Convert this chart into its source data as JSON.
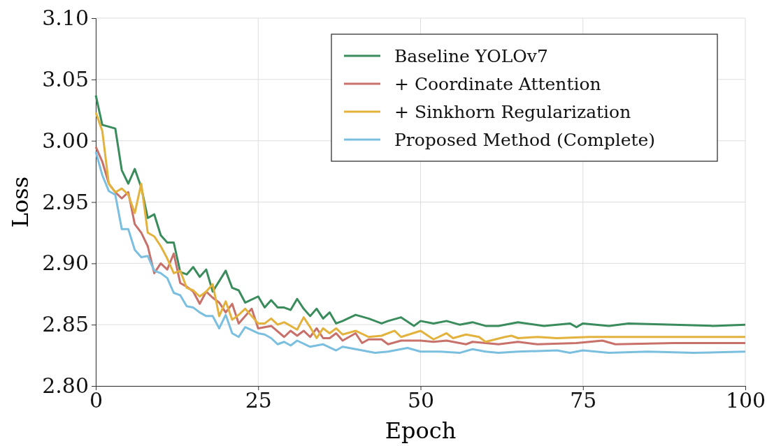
{
  "chart_data": {
    "type": "line",
    "xlabel": "Epoch",
    "ylabel": "Loss",
    "xlim": [
      0,
      100
    ],
    "xticks": [
      0,
      25,
      50,
      75,
      100
    ],
    "ylim": [
      2.8,
      3.1
    ],
    "yticks": [
      {
        "value": 2.8,
        "label": "2.80"
      },
      {
        "value": 2.85,
        "label": "2.85"
      },
      {
        "value": 2.9,
        "label": "2.90"
      },
      {
        "value": 2.95,
        "label": "2.95"
      },
      {
        "value": 3.0,
        "label": "3.00"
      },
      {
        "value": 3.05,
        "label": "3.05"
      },
      {
        "value": 3.1,
        "label": "3.10"
      }
    ],
    "grid": true,
    "legend": "top right",
    "line_style": "solid",
    "series": [
      {
        "name": "Baseline YOLOv7",
        "color": "#3a8c5c",
        "x": [
          0,
          1,
          3,
          4,
          5,
          6,
          7,
          8,
          9,
          10,
          11,
          12,
          13,
          14,
          15,
          16,
          17,
          18,
          20,
          21,
          22,
          23,
          25,
          26,
          27,
          28,
          29,
          30,
          31,
          32,
          33,
          34,
          35,
          36,
          37,
          38,
          40,
          42,
          44,
          45,
          47,
          49,
          50,
          52,
          54,
          56,
          58,
          60,
          62,
          65,
          69,
          73,
          74,
          75,
          79,
          82,
          89,
          95,
          100
        ],
        "values": [
          3.037,
          3.013,
          3.01,
          2.976,
          2.965,
          2.977,
          2.962,
          2.937,
          2.94,
          2.923,
          2.917,
          2.917,
          2.893,
          2.891,
          2.897,
          2.889,
          2.895,
          2.877,
          2.894,
          2.88,
          2.878,
          2.868,
          2.873,
          2.864,
          2.87,
          2.864,
          2.864,
          2.862,
          2.871,
          2.863,
          2.857,
          2.863,
          2.855,
          2.86,
          2.851,
          2.853,
          2.858,
          2.855,
          2.851,
          2.853,
          2.856,
          2.849,
          2.853,
          2.851,
          2.853,
          2.85,
          2.852,
          2.849,
          2.849,
          2.852,
          2.849,
          2.851,
          2.848,
          2.851,
          2.849,
          2.851,
          2.85,
          2.849,
          2.85
        ]
      },
      {
        "name": "+ Coordinate Attention",
        "color": "#c8716a",
        "x": [
          0,
          1,
          2,
          3,
          4,
          5,
          6,
          7,
          8,
          9,
          10,
          11,
          12,
          13,
          14,
          15,
          16,
          17,
          18,
          19,
          20,
          21,
          22,
          24,
          25,
          26,
          27,
          29,
          30,
          31,
          32,
          33,
          34,
          35,
          36,
          37,
          38,
          40,
          41,
          42,
          44,
          45,
          47,
          50,
          52,
          54,
          55,
          57,
          58,
          62,
          65,
          68,
          74,
          78,
          80,
          89,
          100
        ],
        "values": [
          2.995,
          2.983,
          2.965,
          2.958,
          2.953,
          2.958,
          2.932,
          2.925,
          2.914,
          2.892,
          2.9,
          2.895,
          2.908,
          2.884,
          2.881,
          2.877,
          2.867,
          2.877,
          2.872,
          2.868,
          2.86,
          2.867,
          2.851,
          2.863,
          2.847,
          2.848,
          2.849,
          2.84,
          2.845,
          2.841,
          2.845,
          2.84,
          2.847,
          2.839,
          2.839,
          2.843,
          2.837,
          2.843,
          2.835,
          2.838,
          2.838,
          2.834,
          2.837,
          2.837,
          2.836,
          2.837,
          2.836,
          2.834,
          2.836,
          2.834,
          2.836,
          2.834,
          2.835,
          2.837,
          2.834,
          2.835,
          2.835
        ]
      },
      {
        "name": "+ Sinkhorn Regularization",
        "color": "#e3b23c",
        "x": [
          0,
          1,
          2,
          3,
          4,
          5,
          6,
          7,
          8,
          9,
          10,
          11,
          12,
          13,
          14,
          15,
          16,
          17,
          18,
          19,
          20,
          21,
          22,
          23,
          24,
          25,
          26,
          27,
          28,
          29,
          31,
          32,
          33,
          34,
          35,
          36,
          37,
          38,
          40,
          42,
          44,
          46,
          47,
          50,
          52,
          54,
          55,
          57,
          59,
          60,
          63,
          64,
          65,
          68,
          71,
          76,
          82,
          89,
          100
        ],
        "values": [
          3.023,
          3.008,
          2.965,
          2.958,
          2.961,
          2.956,
          2.941,
          2.965,
          2.925,
          2.922,
          2.914,
          2.904,
          2.892,
          2.894,
          2.88,
          2.878,
          2.873,
          2.877,
          2.883,
          2.857,
          2.869,
          2.854,
          2.858,
          2.863,
          2.857,
          2.851,
          2.851,
          2.855,
          2.85,
          2.852,
          2.846,
          2.856,
          2.848,
          2.839,
          2.847,
          2.843,
          2.847,
          2.842,
          2.845,
          2.84,
          2.841,
          2.845,
          2.84,
          2.845,
          2.838,
          2.843,
          2.839,
          2.842,
          2.84,
          2.836,
          2.84,
          2.841,
          2.839,
          2.84,
          2.839,
          2.84,
          2.84,
          2.84,
          2.84
        ]
      },
      {
        "name": "Proposed Method (Complete)",
        "color": "#7bbfe0",
        "x": [
          0,
          1,
          2,
          3,
          4,
          5,
          6,
          7,
          8,
          9,
          10,
          11,
          12,
          13,
          14,
          15,
          16,
          17,
          18,
          19,
          20,
          21,
          22,
          23,
          25,
          26,
          27,
          28,
          29,
          30,
          31,
          33,
          35,
          37,
          38,
          40,
          43,
          45,
          48,
          50,
          53,
          56,
          58,
          60,
          62,
          65,
          71,
          73,
          75,
          79,
          85,
          92,
          100
        ],
        "values": [
          2.991,
          2.972,
          2.959,
          2.956,
          2.928,
          2.928,
          2.911,
          2.905,
          2.906,
          2.894,
          2.892,
          2.888,
          2.876,
          2.874,
          2.865,
          2.864,
          2.86,
          2.857,
          2.857,
          2.847,
          2.858,
          2.843,
          2.84,
          2.848,
          2.843,
          2.842,
          2.839,
          2.834,
          2.836,
          2.833,
          2.837,
          2.832,
          2.834,
          2.829,
          2.832,
          2.83,
          2.827,
          2.828,
          2.831,
          2.828,
          2.828,
          2.827,
          2.83,
          2.828,
          2.827,
          2.828,
          2.829,
          2.827,
          2.829,
          2.827,
          2.828,
          2.827,
          2.828
        ]
      }
    ]
  }
}
